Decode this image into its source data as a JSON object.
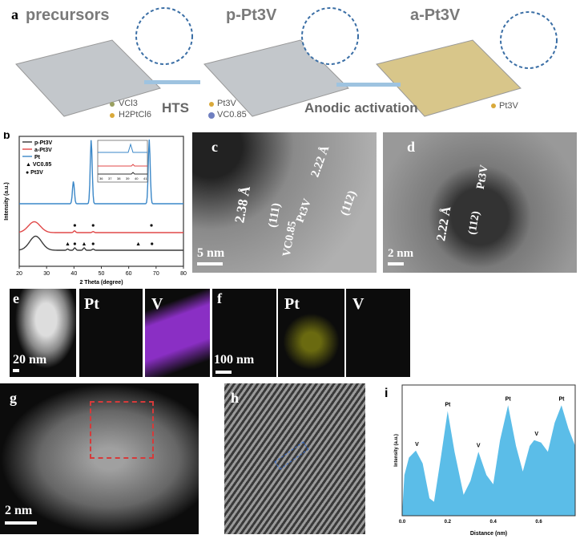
{
  "panel_a": {
    "label": "a",
    "stage1_title": "precursors",
    "stage2_title": "p-Pt3V",
    "stage3_title": "a-Pt3V",
    "legend1": [
      "VCl3",
      "H2PtCl6"
    ],
    "step1": "HTS",
    "legend2": [
      "Pt3V",
      "VC0.85"
    ],
    "step2": "Anodic activation",
    "legend3": "Pt3V",
    "colors": {
      "mesh": "#b9bec3",
      "particle": "#d9a93a",
      "vc": "#6f7fc0",
      "arrow": "#9ec3e0"
    }
  },
  "panel_c": {
    "label": "c",
    "d1": "2.38 Å",
    "plane1": "(111)",
    "phase1": "VC0.85",
    "phase2": "Pt3V",
    "d2": "2.22 Å",
    "plane2": "(112)",
    "scale": "5 nm"
  },
  "panel_d": {
    "label": "d",
    "d": "2.22 Å",
    "phase": "Pt3V",
    "plane": "(112)",
    "scale": "2 nm"
  },
  "panel_e": {
    "label": "e",
    "scale": "20 nm",
    "map1": "Pt",
    "map2": "V"
  },
  "panel_f": {
    "label": "f",
    "scale": "100 nm",
    "map1": "Pt",
    "map2": "V"
  },
  "panel_g": {
    "label": "g",
    "scale": "2 nm"
  },
  "panel_h": {
    "label": "h"
  },
  "chart_data": [
    {
      "panel": "b",
      "type": "line",
      "xlabel": "2 Theta (degree)",
      "ylabel": "Intensity (a.u.)",
      "xlim": [
        20,
        80
      ],
      "xticks": [
        20,
        30,
        40,
        50,
        60,
        70,
        80
      ],
      "legend": [
        "p-Pt3V",
        "a-Pt3V",
        "Pt",
        "VC0.85",
        "Pt3V"
      ],
      "legend_position": "top-left",
      "series": [
        {
          "name": "Pt",
          "color": "#3a87c8",
          "peaks": [
            [
              39.8,
              0.35
            ],
            [
              46.3,
              1.0
            ],
            [
              67.5,
              1.0
            ]
          ]
        },
        {
          "name": "a-Pt3V",
          "color": "#e04848",
          "peaks": [
            [
              25.5,
              0.3
            ],
            [
              40.2,
              0.05
            ],
            [
              47,
              0.03
            ]
          ]
        },
        {
          "name": "p-Pt3V",
          "color": "#3a3a3a",
          "peaks": [
            [
              26,
              0.35
            ],
            [
              37.7,
              0.03
            ],
            [
              40.3,
              0.06
            ],
            [
              43.7,
              0.06
            ],
            [
              47,
              0.03
            ]
          ]
        }
      ],
      "markers_vc": [
        37.7,
        43.7,
        63.5
      ],
      "markers_pt3v_p": [
        40.3,
        47,
        68.5
      ],
      "markers_pt3v_a": [
        40.3,
        47,
        68.3
      ],
      "inset": {
        "xticks": [
          36,
          37,
          38,
          39,
          40,
          41
        ]
      }
    },
    {
      "panel": "i",
      "type": "area",
      "xlabel": "Distance (nm)",
      "ylabel": "Intensity (a.u.)",
      "xlim": [
        0,
        0.76
      ],
      "xticks": [
        "0.0",
        "0.2",
        "0.4",
        "0.6"
      ],
      "color": "#5bbde8",
      "x": [
        0.0,
        0.01,
        0.03,
        0.06,
        0.09,
        0.12,
        0.14,
        0.17,
        0.2,
        0.23,
        0.27,
        0.3,
        0.335,
        0.37,
        0.4,
        0.43,
        0.465,
        0.5,
        0.53,
        0.56,
        0.58,
        0.61,
        0.64,
        0.67,
        0.7,
        0.73,
        0.76
      ],
      "y": [
        0.02,
        0.35,
        0.5,
        0.56,
        0.45,
        0.15,
        0.12,
        0.5,
        0.9,
        0.55,
        0.18,
        0.3,
        0.55,
        0.35,
        0.27,
        0.65,
        0.95,
        0.6,
        0.38,
        0.6,
        0.65,
        0.63,
        0.55,
        0.8,
        0.95,
        0.75,
        0.6
      ],
      "peak_labels": [
        {
          "x": 0.065,
          "text": "V"
        },
        {
          "x": 0.2,
          "text": "Pt"
        },
        {
          "x": 0.335,
          "text": "V"
        },
        {
          "x": 0.465,
          "text": "Pt"
        },
        {
          "x": 0.59,
          "text": "V"
        },
        {
          "x": 0.7,
          "text": "Pt"
        }
      ]
    }
  ]
}
